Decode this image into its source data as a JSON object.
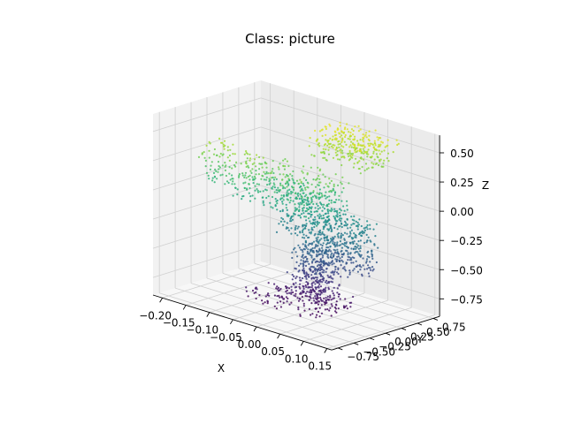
{
  "chart_data": {
    "type": "scatter",
    "title": "Class: picture",
    "xlabel": "X",
    "ylabel": "Y",
    "zlabel": "Z",
    "xlim": [
      -0.22,
      0.16
    ],
    "ylim": [
      -0.85,
      0.85
    ],
    "zlim": [
      -0.9,
      0.65
    ],
    "x_ticks": [
      "−0.20",
      "−0.15",
      "−0.10",
      "−0.05",
      "0.00",
      "0.05",
      "0.10",
      "0.15"
    ],
    "y_ticks": [
      "−0.75",
      "−0.50",
      "−0.25",
      "0.00",
      "0.25",
      "0.50",
      "0.75"
    ],
    "z_ticks": [
      "−0.75",
      "−0.50",
      "−0.25",
      "0.00",
      "0.25",
      "0.50"
    ],
    "colormap": "viridis",
    "grid": true,
    "pane_color": "#f2f2f2",
    "series": [
      {
        "clusters": [
          {
            "xr": [
              -0.1,
              0.06
            ],
            "yr": [
              -0.35,
              0.35
            ],
            "zr": [
              -0.88,
              -0.78
            ],
            "n": 150
          },
          {
            "xr": [
              -0.03,
              0.04
            ],
            "yr": [
              -0.15,
              0.25
            ],
            "zr": [
              -0.8,
              -0.35
            ],
            "n": 380
          },
          {
            "xr": [
              -0.01,
              0.09
            ],
            "yr": [
              0.05,
              0.45
            ],
            "zr": [
              -0.55,
              -0.1
            ],
            "n": 320
          },
          {
            "xr": [
              -0.06,
              0.06
            ],
            "yr": [
              -0.2,
              0.2
            ],
            "zr": [
              -0.3,
              0.15
            ],
            "n": 300
          },
          {
            "xr": [
              -0.1,
              0.08
            ],
            "yr": [
              -0.55,
              0.05
            ],
            "zr": [
              0.0,
              0.35
            ],
            "n": 280
          },
          {
            "xr": [
              -0.02,
              0.1
            ],
            "yr": [
              0.1,
              0.7
            ],
            "zr": [
              0.35,
              0.6
            ],
            "n": 300
          },
          {
            "xr": [
              -0.16,
              -0.05
            ],
            "yr": [
              -0.6,
              -0.3
            ],
            "zr": [
              0.1,
              0.45
            ],
            "n": 120
          }
        ]
      }
    ]
  }
}
